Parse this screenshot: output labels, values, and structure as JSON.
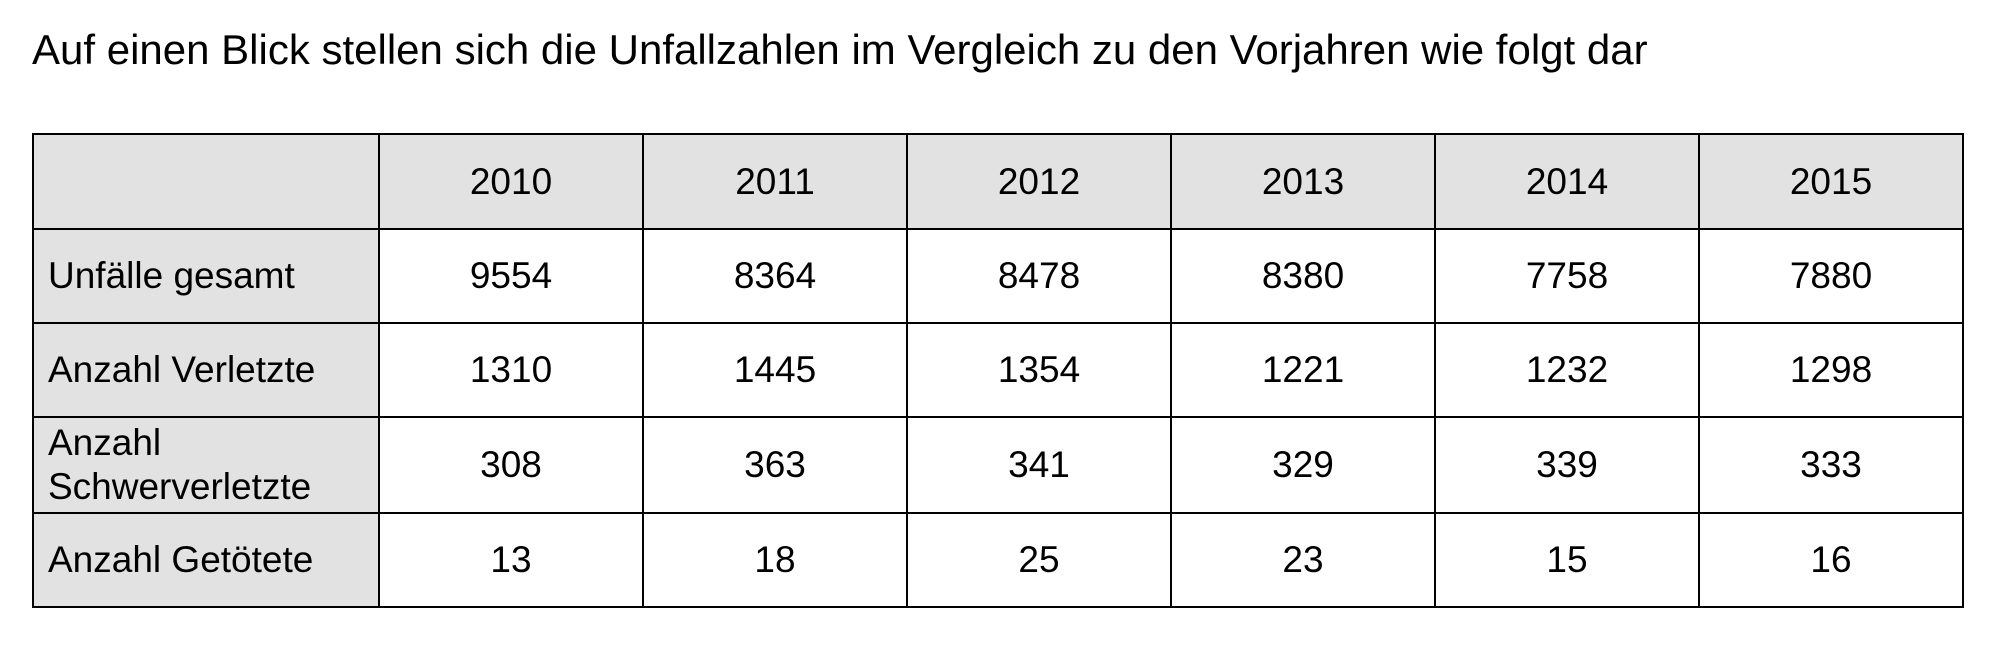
{
  "heading": "Auf einen Blick stellen sich die Unfallzahlen im Vergleich zu den Vorjahren wie folgt dar",
  "table": {
    "corner": "",
    "years": [
      "2010",
      "2011",
      "2012",
      "2013",
      "2014",
      "2015"
    ],
    "rows": [
      {
        "label": "Unfälle gesamt",
        "values": [
          "9554",
          "8364",
          "8478",
          "8380",
          "7758",
          "7880"
        ]
      },
      {
        "label": "Anzahl Verletzte",
        "values": [
          "1310",
          "1445",
          "1354",
          "1221",
          "1232",
          "1298"
        ]
      },
      {
        "label": "Anzahl Schwerverletzte",
        "label_line1": "Anzahl",
        "label_line2": "Schwerverletzte",
        "values": [
          "308",
          "363",
          "341",
          "329",
          "339",
          "333"
        ]
      },
      {
        "label": "Anzahl Getötete",
        "values": [
          "13",
          "18",
          "25",
          "23",
          "15",
          "16"
        ]
      }
    ]
  },
  "colors": {
    "header_fill": "#e2e2e2",
    "border": "#000000",
    "text": "#000000",
    "background": "#ffffff"
  }
}
